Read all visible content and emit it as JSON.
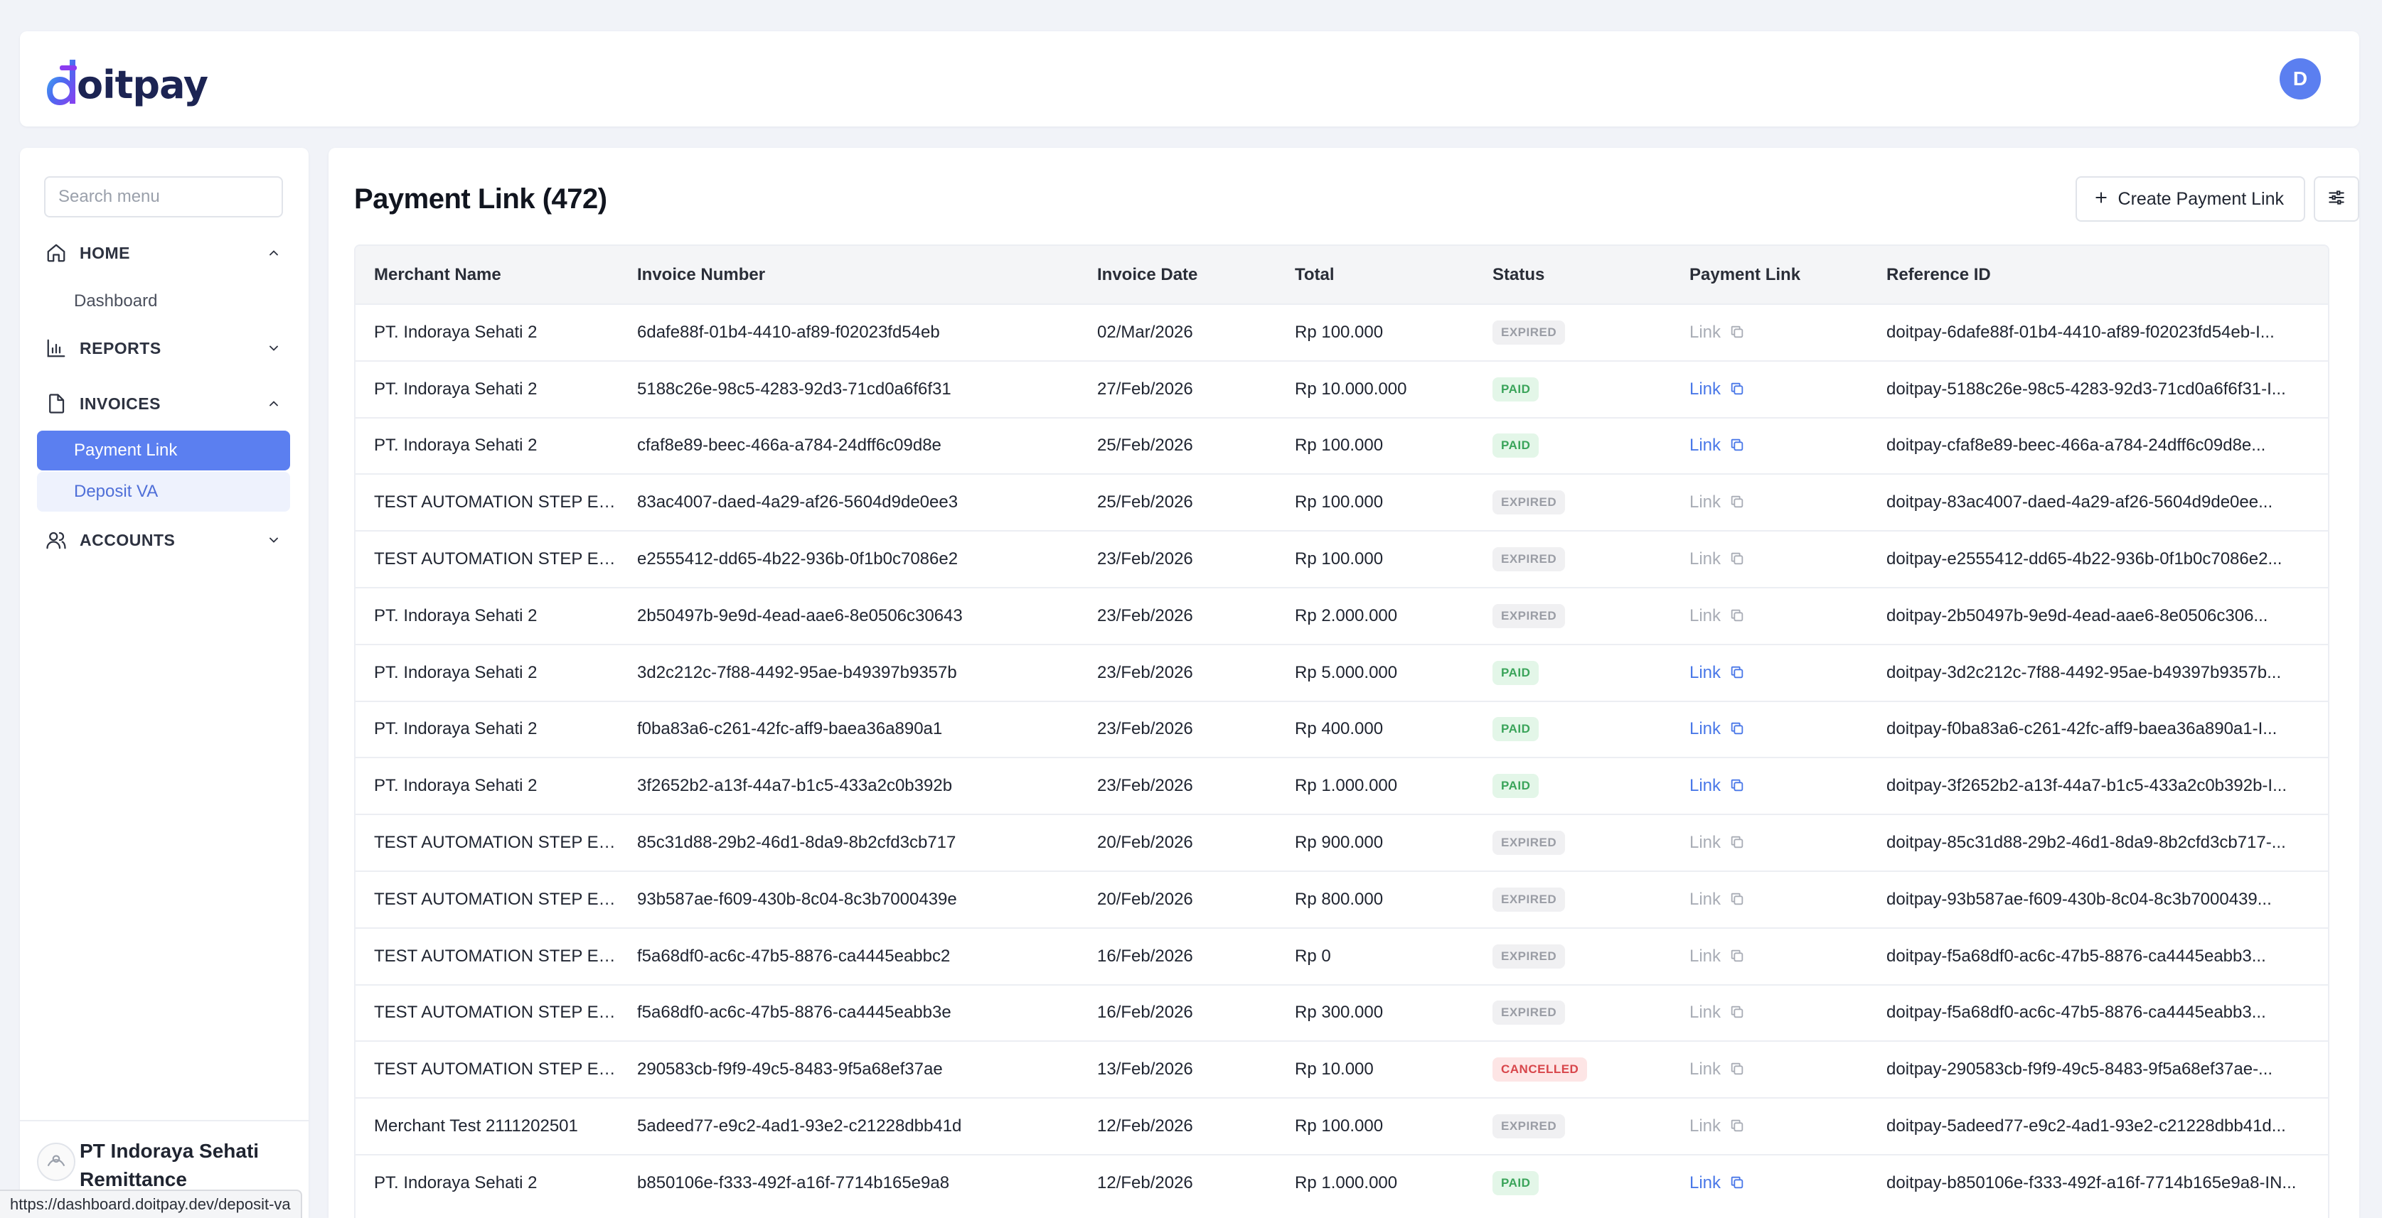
{
  "header": {
    "logo_text": "oitpay",
    "avatar_initial": "D"
  },
  "sidebar": {
    "search_placeholder": "Search menu",
    "sections": {
      "home": {
        "label": "HOME",
        "icon": "home-icon",
        "expanded": true
      },
      "reports": {
        "label": "REPORTS",
        "icon": "bar-chart-icon",
        "expanded": false
      },
      "invoices": {
        "label": "INVOICES",
        "icon": "document-icon",
        "expanded": true
      },
      "accounts": {
        "label": "ACCOUNTS",
        "icon": "users-icon",
        "expanded": false
      }
    },
    "items": {
      "dashboard": "Dashboard",
      "payment_link": "Payment Link",
      "deposit_va": "Deposit VA"
    },
    "merchant": {
      "name": "PT Indoraya Sehati Remittance"
    },
    "status_url": "https://dashboard.doitpay.dev/deposit-va"
  },
  "main": {
    "title": "Payment Link (472)",
    "create_button": "Create Payment Link",
    "columns": [
      "Merchant Name",
      "Invoice Number",
      "Invoice Date",
      "Total",
      "Status",
      "Payment Link",
      "Reference ID"
    ],
    "rows": [
      {
        "merchant": "PT. Indoraya Sehati 2",
        "invoice": "6dafe88f-01b4-4410-af89-f02023fd54eb",
        "date": "02/Mar/2026",
        "total": "Rp 100.000",
        "status": "EXPIRED",
        "link": "Link",
        "ref": "doitpay-6dafe88f-01b4-4410-af89-f02023fd54eb-I..."
      },
      {
        "merchant": "PT. Indoraya Sehati 2",
        "invoice": "5188c26e-98c5-4283-92d3-71cd0a6f6f31",
        "date": "27/Feb/2026",
        "total": "Rp 10.000.000",
        "status": "PAID",
        "link": "Link",
        "ref": "doitpay-5188c26e-98c5-4283-92d3-71cd0a6f6f31-I..."
      },
      {
        "merchant": "PT. Indoraya Sehati 2",
        "invoice": "cfaf8e89-beec-466a-a784-24dff6c09d8e",
        "date": "25/Feb/2026",
        "total": "Rp 100.000",
        "status": "PAID",
        "link": "Link",
        "ref": "doitpay-cfaf8e89-beec-466a-a784-24dff6c09d8e..."
      },
      {
        "merchant": "TEST AUTOMATION STEP EDI...",
        "invoice": "83ac4007-daed-4a29-af26-5604d9de0ee3",
        "date": "25/Feb/2026",
        "total": "Rp 100.000",
        "status": "EXPIRED",
        "link": "Link",
        "ref": "doitpay-83ac4007-daed-4a29-af26-5604d9de0ee..."
      },
      {
        "merchant": "TEST AUTOMATION STEP EDI...",
        "invoice": "e2555412-dd65-4b22-936b-0f1b0c7086e2",
        "date": "23/Feb/2026",
        "total": "Rp 100.000",
        "status": "EXPIRED",
        "link": "Link",
        "ref": "doitpay-e2555412-dd65-4b22-936b-0f1b0c7086e2..."
      },
      {
        "merchant": "PT. Indoraya Sehati 2",
        "invoice": "2b50497b-9e9d-4ead-aae6-8e0506c30643",
        "date": "23/Feb/2026",
        "total": "Rp 2.000.000",
        "status": "EXPIRED",
        "link": "Link",
        "ref": "doitpay-2b50497b-9e9d-4ead-aae6-8e0506c306..."
      },
      {
        "merchant": "PT. Indoraya Sehati 2",
        "invoice": "3d2c212c-7f88-4492-95ae-b49397b9357b",
        "date": "23/Feb/2026",
        "total": "Rp 5.000.000",
        "status": "PAID",
        "link": "Link",
        "ref": "doitpay-3d2c212c-7f88-4492-95ae-b49397b9357b..."
      },
      {
        "merchant": "PT. Indoraya Sehati 2",
        "invoice": "f0ba83a6-c261-42fc-aff9-baea36a890a1",
        "date": "23/Feb/2026",
        "total": "Rp 400.000",
        "status": "PAID",
        "link": "Link",
        "ref": "doitpay-f0ba83a6-c261-42fc-aff9-baea36a890a1-I..."
      },
      {
        "merchant": "PT. Indoraya Sehati 2",
        "invoice": "3f2652b2-a13f-44a7-b1c5-433a2c0b392b",
        "date": "23/Feb/2026",
        "total": "Rp 1.000.000",
        "status": "PAID",
        "link": "Link",
        "ref": "doitpay-3f2652b2-a13f-44a7-b1c5-433a2c0b392b-I..."
      },
      {
        "merchant": "TEST AUTOMATION STEP EDI...",
        "invoice": "85c31d88-29b2-46d1-8da9-8b2cfd3cb717",
        "date": "20/Feb/2026",
        "total": "Rp 900.000",
        "status": "EXPIRED",
        "link": "Link",
        "ref": "doitpay-85c31d88-29b2-46d1-8da9-8b2cfd3cb717-..."
      },
      {
        "merchant": "TEST AUTOMATION STEP EDI...",
        "invoice": "93b587ae-f609-430b-8c04-8c3b7000439e",
        "date": "20/Feb/2026",
        "total": "Rp 800.000",
        "status": "EXPIRED",
        "link": "Link",
        "ref": "doitpay-93b587ae-f609-430b-8c04-8c3b7000439..."
      },
      {
        "merchant": "TEST AUTOMATION STEP EDI...",
        "invoice": "f5a68df0-ac6c-47b5-8876-ca4445eabbc2",
        "date": "16/Feb/2026",
        "total": "Rp 0",
        "status": "EXPIRED",
        "link": "Link",
        "ref": "doitpay-f5a68df0-ac6c-47b5-8876-ca4445eabb3..."
      },
      {
        "merchant": "TEST AUTOMATION STEP EDI...",
        "invoice": "f5a68df0-ac6c-47b5-8876-ca4445eabb3e",
        "date": "16/Feb/2026",
        "total": "Rp 300.000",
        "status": "EXPIRED",
        "link": "Link",
        "ref": "doitpay-f5a68df0-ac6c-47b5-8876-ca4445eabb3..."
      },
      {
        "merchant": "TEST AUTOMATION STEP EDI...",
        "invoice": "290583cb-f9f9-49c5-8483-9f5a68ef37ae",
        "date": "13/Feb/2026",
        "total": "Rp 10.000",
        "status": "CANCELLED",
        "link": "Link",
        "ref": "doitpay-290583cb-f9f9-49c5-8483-9f5a68ef37ae-..."
      },
      {
        "merchant": "Merchant Test 2111202501",
        "invoice": "5adeed77-e9c2-4ad1-93e2-c21228dbb41d",
        "date": "12/Feb/2026",
        "total": "Rp 100.000",
        "status": "EXPIRED",
        "link": "Link",
        "ref": "doitpay-5adeed77-e9c2-4ad1-93e2-c21228dbb41d..."
      },
      {
        "merchant": "PT. Indoraya Sehati 2",
        "invoice": "b850106e-f333-492f-a16f-7714b165e9a8",
        "date": "12/Feb/2026",
        "total": "Rp 1.000.000",
        "status": "PAID",
        "link": "Link",
        "ref": "doitpay-b850106e-f333-492f-a16f-7714b165e9a8-IN..."
      }
    ]
  },
  "colors": {
    "accent": "#5b7ff0",
    "link_active": "#4a78e8",
    "paid": "#3aa45a",
    "cancelled": "#d8464b",
    "expired": "#9a9da5"
  }
}
